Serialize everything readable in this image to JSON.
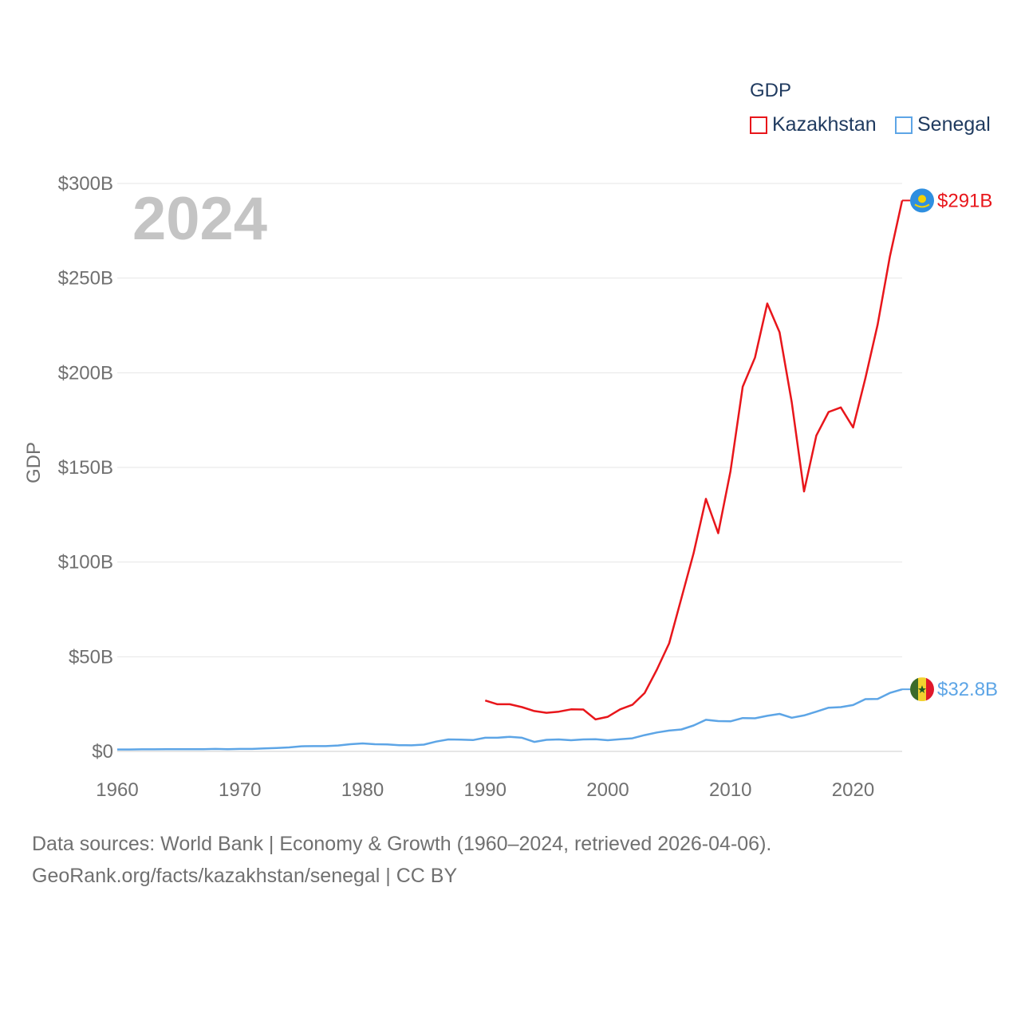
{
  "chart_data": {
    "type": "line",
    "title": "GDP",
    "year_label": "2024",
    "xlabel": "",
    "ylabel": "GDP",
    "xlim": [
      1960,
      2024
    ],
    "ylim": [
      0,
      300
    ],
    "x_ticks": [
      1960,
      1970,
      1980,
      1990,
      2000,
      2010,
      2020
    ],
    "y_ticks": [
      {
        "value": 0,
        "label": "$0"
      },
      {
        "value": 50,
        "label": "$50B"
      },
      {
        "value": 100,
        "label": "$100B"
      },
      {
        "value": 150,
        "label": "$150B"
      },
      {
        "value": 200,
        "label": "$200B"
      },
      {
        "value": 250,
        "label": "$250B"
      },
      {
        "value": 300,
        "label": "$300B"
      }
    ],
    "legend": {
      "title": "GDP",
      "position": "top-right"
    },
    "series": [
      {
        "name": "Kazakhstan",
        "color": "#e8161b",
        "end_label": "$291B",
        "flag_icon": "kazakhstan-flag-icon",
        "x": [
          1990,
          1991,
          1992,
          1993,
          1994,
          1995,
          1996,
          1997,
          1998,
          1999,
          2000,
          2001,
          2002,
          2003,
          2004,
          2005,
          2006,
          2007,
          2008,
          2009,
          2010,
          2011,
          2012,
          2013,
          2014,
          2015,
          2016,
          2017,
          2018,
          2019,
          2020,
          2021,
          2022,
          2023,
          2024
        ],
        "values": [
          26.9,
          24.9,
          24.9,
          23.4,
          21.3,
          20.4,
          21.0,
          22.2,
          22.1,
          16.9,
          18.3,
          22.2,
          24.6,
          30.8,
          43.2,
          57.1,
          81.0,
          104.8,
          133.4,
          115.3,
          148.0,
          192.6,
          208.0,
          236.6,
          221.4,
          184.4,
          137.3,
          166.8,
          179.3,
          181.7,
          171.1,
          197.1,
          225.5,
          261.4,
          291.0
        ]
      },
      {
        "name": "Senegal",
        "color": "#5da5e6",
        "end_label": "$32.8B",
        "flag_icon": "senegal-flag-icon",
        "x": [
          1960,
          1961,
          1962,
          1963,
          1964,
          1965,
          1966,
          1967,
          1968,
          1969,
          1970,
          1971,
          1972,
          1973,
          1974,
          1975,
          1976,
          1977,
          1978,
          1979,
          1980,
          1981,
          1982,
          1983,
          1984,
          1985,
          1986,
          1987,
          1988,
          1989,
          1990,
          1991,
          1992,
          1993,
          1994,
          1995,
          1996,
          1997,
          1998,
          1999,
          2000,
          2001,
          2002,
          2003,
          2004,
          2005,
          2006,
          2007,
          2008,
          2009,
          2010,
          2011,
          2012,
          2013,
          2014,
          2015,
          2016,
          2017,
          2018,
          2019,
          2020,
          2021,
          2022,
          2023,
          2024
        ],
        "values": [
          1.0,
          1.0,
          1.1,
          1.1,
          1.2,
          1.2,
          1.2,
          1.2,
          1.3,
          1.2,
          1.3,
          1.3,
          1.6,
          1.8,
          2.1,
          2.7,
          2.8,
          2.8,
          3.1,
          3.8,
          4.2,
          3.8,
          3.7,
          3.3,
          3.2,
          3.6,
          5.2,
          6.3,
          6.2,
          6.0,
          7.2,
          7.2,
          7.7,
          7.2,
          5.0,
          6.1,
          6.3,
          5.9,
          6.3,
          6.4,
          5.9,
          6.4,
          6.9,
          8.6,
          10.0,
          11.0,
          11.6,
          13.7,
          16.7,
          16.0,
          15.9,
          17.6,
          17.5,
          18.8,
          19.8,
          17.8,
          19.0,
          21.0,
          23.1,
          23.4,
          24.5,
          27.6,
          27.7,
          30.9,
          32.8
        ]
      }
    ]
  },
  "footer": {
    "line1": "Data sources: World Bank | Economy & Growth (1960–2024, retrieved 2026-04-06).",
    "line2": "GeoRank.org/facts/kazakhstan/senegal | CC BY"
  }
}
